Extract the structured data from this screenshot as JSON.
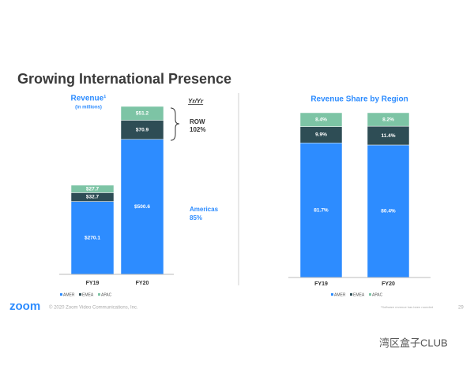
{
  "slide": {
    "title": "Growing International Presence",
    "logo": "zoom",
    "copyright": "© 2020 Zoom Video Communications, Inc.",
    "footnote": "¹Software revenue has been rounded",
    "page_number": "29",
    "watermark": "湾区盒子CLUB"
  },
  "chart_data": [
    {
      "type": "bar",
      "stacked": true,
      "title": "Revenue¹",
      "subtitle": "(in millions)",
      "categories": [
        "FY19",
        "FY20"
      ],
      "series": [
        {
          "name": "AMER",
          "color": "#2d8cff",
          "values": [
            270.1,
            500.6
          ],
          "value_labels": [
            "$270.1",
            "$500.6"
          ]
        },
        {
          "name": "EMEA",
          "color": "#2e4d55",
          "values": [
            32.7,
            70.9
          ],
          "value_labels": [
            "$32.7",
            "$70.9"
          ]
        },
        {
          "name": "APAC",
          "color": "#7dc4a5",
          "values": [
            27.7,
            51.2
          ],
          "value_labels": [
            "$27.7",
            "$51.2"
          ]
        }
      ],
      "annotations": [
        {
          "text": "Yr/Yr"
        },
        {
          "text": "ROW"
        },
        {
          "text": "102%"
        },
        {
          "text": "Americas"
        },
        {
          "text": "85%"
        }
      ]
    },
    {
      "type": "bar",
      "stacked": true,
      "title": "Revenue Share by Region",
      "categories": [
        "FY19",
        "FY20"
      ],
      "series": [
        {
          "name": "AMER",
          "color": "#2d8cff",
          "values": [
            81.7,
            80.4
          ],
          "value_labels": [
            "81.7%",
            "80.4%"
          ]
        },
        {
          "name": "EMEA",
          "color": "#2e4d55",
          "values": [
            9.9,
            11.4
          ],
          "value_labels": [
            "9.9%",
            "11.4%"
          ]
        },
        {
          "name": "APAC",
          "color": "#7dc4a5",
          "values": [
            8.4,
            8.2
          ],
          "value_labels": [
            "8.4%",
            "8.2%"
          ]
        }
      ]
    }
  ]
}
